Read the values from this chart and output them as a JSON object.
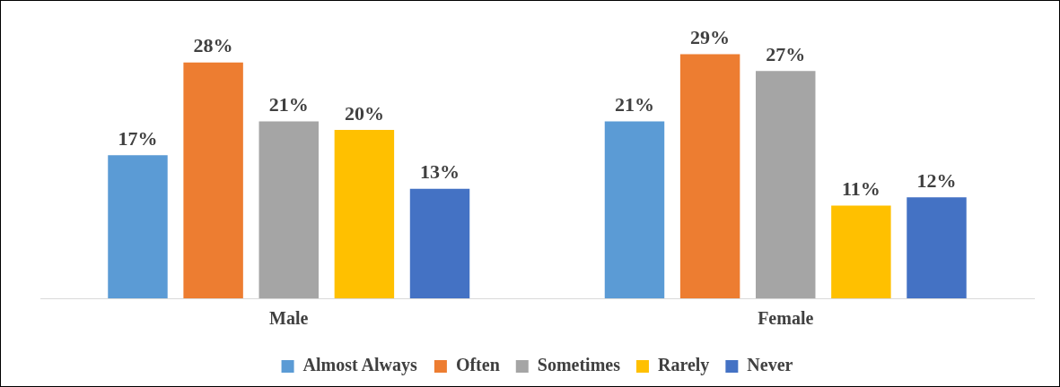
{
  "chart_data": {
    "type": "bar",
    "categories": [
      "Male",
      "Female"
    ],
    "legend": "bottom",
    "grid": false,
    "data_labels": true,
    "series": [
      {
        "name": "Almost Always",
        "color": "#5b9bd5",
        "values": [
          17,
          21
        ],
        "value_labels": [
          "17%",
          "21%"
        ]
      },
      {
        "name": "Often",
        "color": "#ed7d31",
        "values": [
          28,
          29
        ],
        "value_labels": [
          "28%",
          "29%"
        ]
      },
      {
        "name": "Sometimes",
        "color": "#a5a5a5",
        "values": [
          21,
          27
        ],
        "value_labels": [
          "21%",
          "27%"
        ]
      },
      {
        "name": "Rarely",
        "color": "#ffc000",
        "values": [
          20,
          11
        ],
        "value_labels": [
          "20%",
          "11%"
        ]
      },
      {
        "name": "Never",
        "color": "#4472c4",
        "values": [
          13,
          12
        ],
        "value_labels": [
          "13%",
          "12%"
        ]
      }
    ]
  }
}
